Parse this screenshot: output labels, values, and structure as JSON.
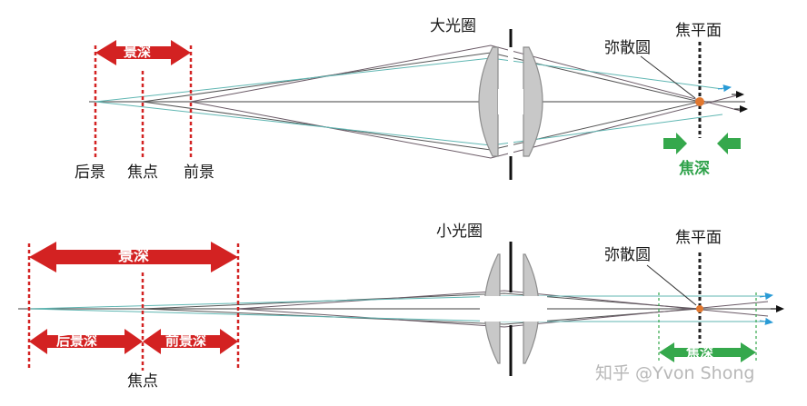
{
  "colors": {
    "red": "#d32222",
    "green": "#35a84c",
    "blue": "#2a9bd6",
    "teal": "#5fb6b2",
    "dark_ray": "#6a5a66",
    "lens": "#c8c8c8",
    "lens_stroke": "#8c8c8c",
    "axis": "#555555",
    "spot": "#e2782f"
  },
  "top": {
    "aperture_label": "大光圈",
    "focal_plane_label": "焦平面",
    "coc_label": "弥散圆",
    "dof_label": "景深",
    "focus_depth_label": "焦深",
    "background_label": "后景",
    "focus_label": "焦点",
    "foreground_label": "前景"
  },
  "bottom": {
    "aperture_label": "小光圈",
    "focal_plane_label": "焦平面",
    "coc_label": "弥散圆",
    "dof_label": "景深",
    "back_dof_label": "后景深",
    "front_dof_label": "前景深",
    "focus_label": "焦点",
    "focus_depth_label": "焦深"
  },
  "watermark": "知乎 @Yvon Shong"
}
